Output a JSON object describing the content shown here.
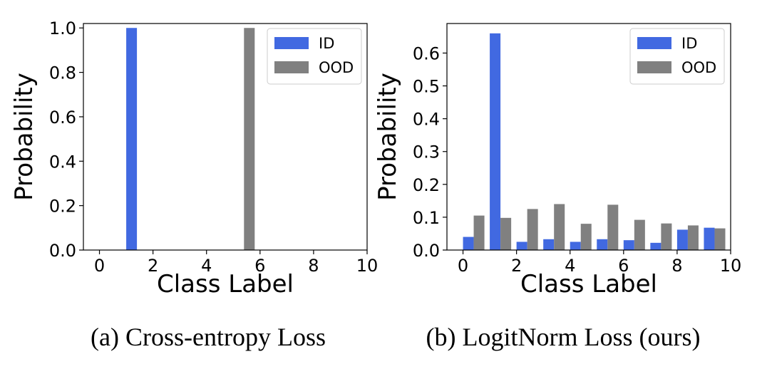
{
  "chart_data": [
    {
      "type": "bar",
      "caption": "(a) Cross-entropy Loss",
      "xlabel": "Class Label",
      "ylabel": "Probability",
      "xlim": [
        -0.6,
        10.0
      ],
      "ylim": [
        0,
        1.02
      ],
      "xticks": [
        "0",
        "2",
        "4",
        "6",
        "8",
        "10"
      ],
      "xtick_values": [
        0,
        2,
        4,
        6,
        8,
        10
      ],
      "yticks": [
        "0.0",
        "0.2",
        "0.4",
        "0.6",
        "0.8",
        "1.0"
      ],
      "ytick_values": [
        0,
        0.2,
        0.4,
        0.6,
        0.8,
        1.0
      ],
      "categories": [
        0,
        1,
        2,
        3,
        4,
        5,
        6,
        7,
        8,
        9
      ],
      "legend": "top-right",
      "series": [
        {
          "name": "ID",
          "color": "#4169e1",
          "values": [
            0,
            1.0,
            0,
            0,
            0,
            0,
            0,
            0,
            0,
            0
          ]
        },
        {
          "name": "OOD",
          "color": "#808080",
          "values": [
            0,
            0,
            0,
            0,
            0,
            1.0,
            0,
            0,
            0,
            0
          ]
        }
      ]
    },
    {
      "type": "bar",
      "caption": "(b) LogitNorm Loss (ours)",
      "xlabel": "Class Label",
      "ylabel": "Probability",
      "xlim": [
        -0.6,
        10.0
      ],
      "ylim": [
        0,
        0.69
      ],
      "xticks": [
        "0",
        "2",
        "4",
        "6",
        "8",
        "10"
      ],
      "xtick_values": [
        0,
        2,
        4,
        6,
        8,
        10
      ],
      "yticks": [
        "0.0",
        "0.1",
        "0.2",
        "0.3",
        "0.4",
        "0.5",
        "0.6"
      ],
      "ytick_values": [
        0,
        0.1,
        0.2,
        0.3,
        0.4,
        0.5,
        0.6
      ],
      "categories": [
        0,
        1,
        2,
        3,
        4,
        5,
        6,
        7,
        8,
        9
      ],
      "legend": "top-right",
      "series": [
        {
          "name": "ID",
          "color": "#4169e1",
          "values": [
            0.04,
            0.66,
            0.025,
            0.033,
            0.025,
            0.033,
            0.03,
            0.022,
            0.062,
            0.068
          ]
        },
        {
          "name": "OOD",
          "color": "#808080",
          "values": [
            0.105,
            0.098,
            0.125,
            0.14,
            0.08,
            0.138,
            0.092,
            0.081,
            0.075,
            0.066
          ]
        }
      ]
    }
  ]
}
